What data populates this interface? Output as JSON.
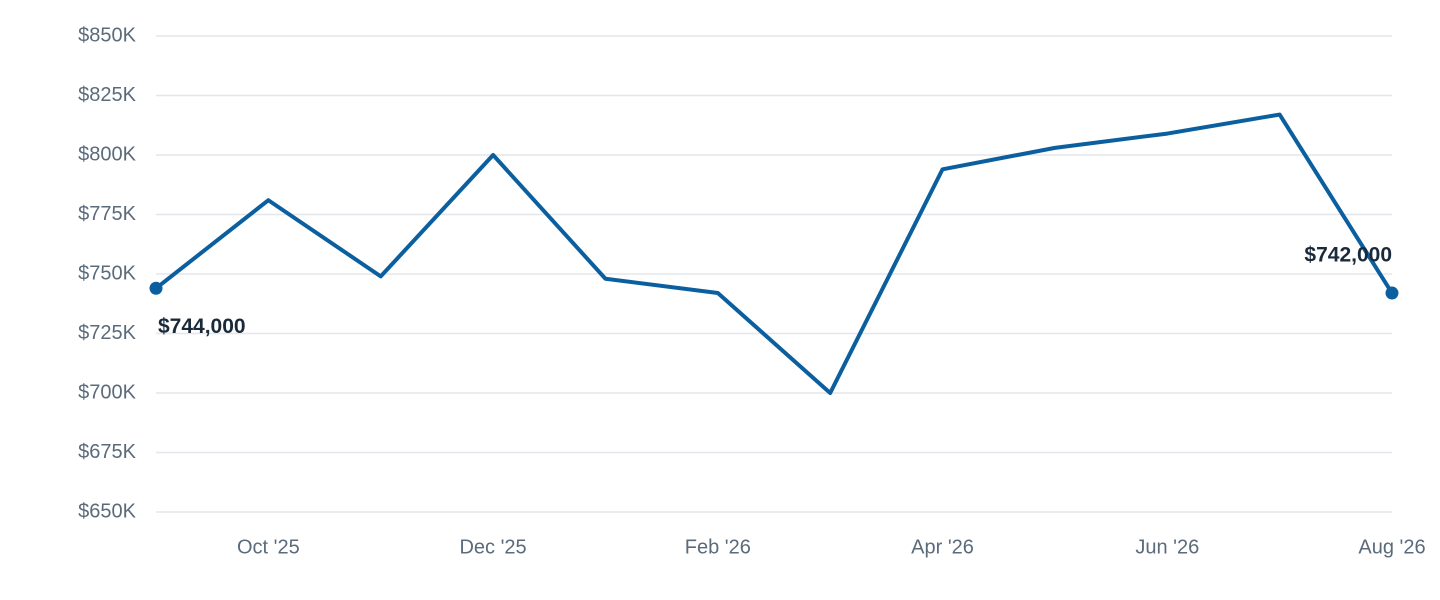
{
  "chart_data": {
    "type": "line",
    "categories": [
      null,
      "Oct '25",
      null,
      "Dec '25",
      null,
      "Feb '26",
      null,
      "Apr '26",
      null,
      "Jun '26",
      null,
      "Aug '26"
    ],
    "series": [
      {
        "color": "#0b5f9f",
        "values": [
          744000,
          781000,
          749000,
          800000,
          748000,
          742000,
          700000,
          794000,
          803000,
          809000,
          817000,
          742000
        ],
        "value_labels": [
          "$744,000",
          null,
          null,
          null,
          null,
          null,
          null,
          null,
          null,
          null,
          null,
          "$742,000"
        ]
      }
    ],
    "ylim": [
      650000,
      850000
    ],
    "yticks": [
      {
        "value": 650000,
        "label": "$650K"
      },
      {
        "value": 675000,
        "label": "$675K"
      },
      {
        "value": 700000,
        "label": "$700K"
      },
      {
        "value": 725000,
        "label": "$725K"
      },
      {
        "value": 750000,
        "label": "$750K"
      },
      {
        "value": 775000,
        "label": "$775K"
      },
      {
        "value": 800000,
        "label": "$800K"
      },
      {
        "value": 825000,
        "label": "$825K"
      },
      {
        "value": 850000,
        "label": "$850K"
      }
    ],
    "grid": true
  }
}
